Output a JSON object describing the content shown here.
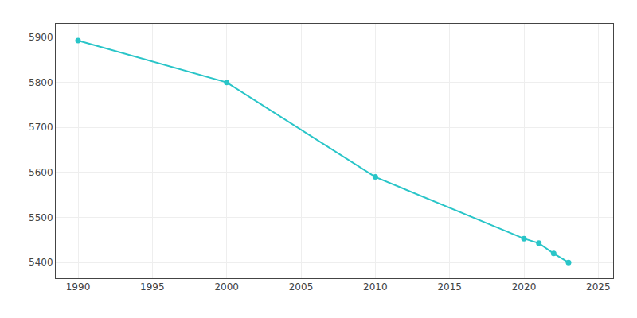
{
  "chart_data": {
    "type": "line",
    "x": [
      1990,
      2000,
      2010,
      2020,
      2021,
      2022,
      2023
    ],
    "values": [
      5893,
      5800,
      5590,
      5453,
      5443,
      5420,
      5400
    ],
    "color": "#29C5C8",
    "marker": "circle",
    "xlim": [
      1988.5,
      2026
    ],
    "ylim": [
      5365,
      5930
    ],
    "xticks": [
      1990,
      1995,
      2000,
      2005,
      2010,
      2015,
      2020,
      2025
    ],
    "yticks": [
      5400,
      5500,
      5600,
      5700,
      5800,
      5900
    ],
    "grid": true
  }
}
